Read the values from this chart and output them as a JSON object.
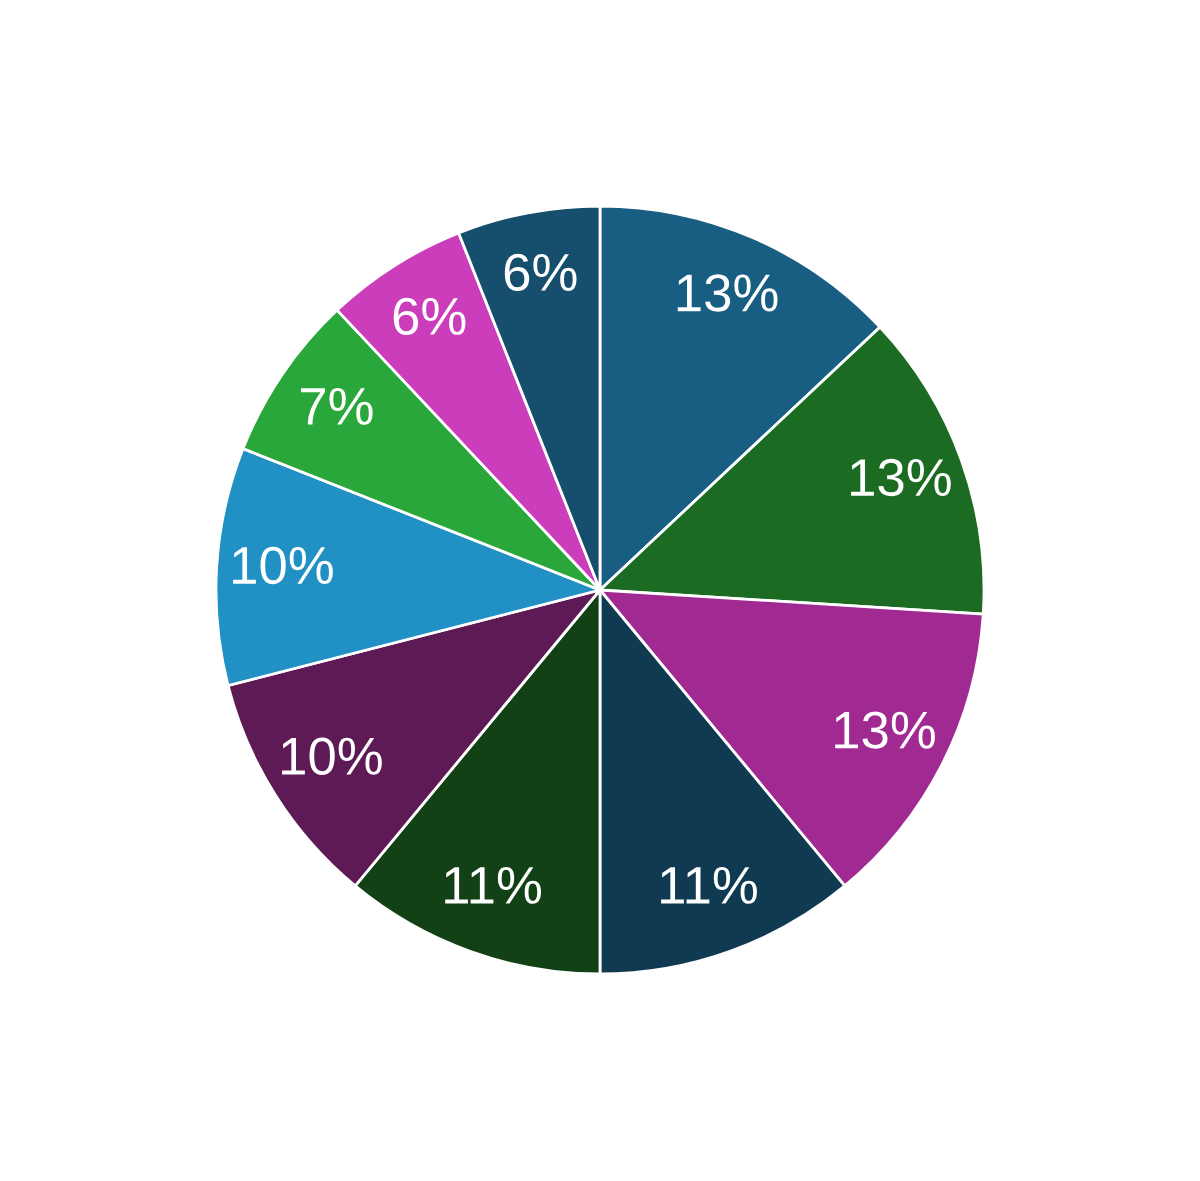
{
  "chart_data": {
    "type": "pie",
    "categories": [
      null,
      null,
      null,
      null,
      null,
      null,
      null,
      null,
      null,
      null
    ],
    "values": [
      13,
      13,
      13,
      11,
      11,
      10,
      10,
      7,
      6,
      6
    ],
    "colors": [
      "#175e82",
      "#1c6b23",
      "#a02a92",
      "#0f3a52",
      "#124116",
      "#5e1a55",
      "#2190c4",
      "#2aa73a",
      "#cb3dbb",
      "#154f6d"
    ],
    "value_labels": [
      "13%",
      "13%",
      "13%",
      "11%",
      "11%",
      "10%",
      "10%",
      "7%",
      "6%",
      "6%"
    ]
  }
}
